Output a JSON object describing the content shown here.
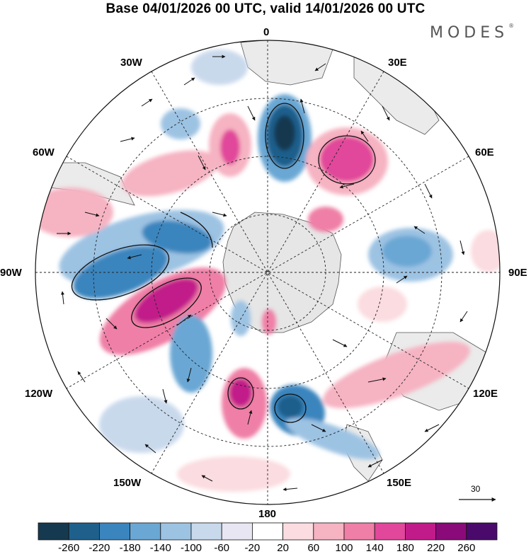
{
  "title": "Base 04/01/2026 00 UTC, valid 14/01/2026 00 UTC",
  "brand": "MODES",
  "brand_mark": "®",
  "longitude_labels": {
    "top": "0",
    "right_top": "30E",
    "left_top": "30W",
    "upper_right": "60E",
    "upper_left": "60W",
    "right": "90E",
    "left": "90W",
    "lower_right": "120E",
    "lower_left": "120W",
    "bottom_right": "150E",
    "bottom_left": "150W",
    "bottom": "180"
  },
  "vector_reference": "30",
  "colorbar": {
    "labels": [
      "-260",
      "-220",
      "-180",
      "-140",
      "-100",
      "-60",
      "-20",
      "20",
      "60",
      "100",
      "140",
      "180",
      "220",
      "260"
    ],
    "colors": [
      "#15394f",
      "#1f5f8c",
      "#3a85be",
      "#6aa7d4",
      "#9dc3e3",
      "#c9d9ec",
      "#e8e6f2",
      "#ffffff",
      "#fbdce0",
      "#f6b3c2",
      "#ef7fa6",
      "#e1479a",
      "#c11b8a",
      "#8a0a7a",
      "#4a0a6b"
    ]
  },
  "colors": {
    "land": "#e6e6e6",
    "ocean": "#ffffff",
    "border": "#333333"
  }
}
